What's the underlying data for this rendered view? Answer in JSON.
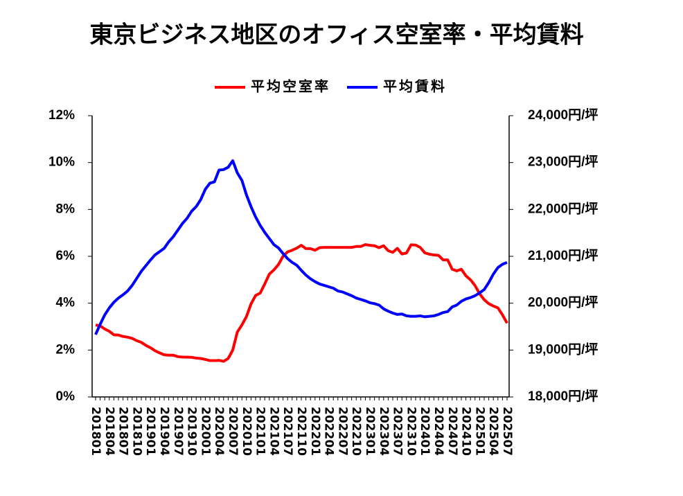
{
  "chart_data": {
    "type": "line",
    "title": "東京ビジネス地区のオフィス空室率・平均賃料",
    "categories": [
      "201801",
      null,
      null,
      "201804",
      null,
      null,
      "201807",
      null,
      null,
      "201810",
      null,
      null,
      "201901",
      null,
      null,
      "201904",
      null,
      null,
      "201907",
      null,
      null,
      "201910",
      null,
      null,
      "202001",
      null,
      null,
      "202004",
      null,
      null,
      "202007",
      null,
      null,
      "202010",
      null,
      null,
      "202101",
      null,
      null,
      "202104",
      null,
      null,
      "202107",
      null,
      null,
      "202110",
      null,
      null,
      "202201",
      null,
      null,
      "202204",
      null,
      null,
      "202207",
      null,
      null,
      "202210",
      null,
      null,
      "202301",
      null,
      null,
      "202304",
      null,
      null,
      "202307",
      null,
      null,
      "202310",
      null,
      null,
      "202401",
      null,
      null,
      "202404",
      null,
      null,
      "202407",
      null,
      null,
      "202410",
      null,
      null,
      "202501",
      null,
      null,
      "202504",
      null,
      null,
      "202507"
    ],
    "series": [
      {
        "name": "平均空室率",
        "color": "#ff0000",
        "axis": "y",
        "values": [
          3.07,
          3.03,
          2.9,
          2.8,
          2.65,
          2.64,
          2.58,
          2.55,
          2.5,
          2.4,
          2.33,
          2.2,
          2.1,
          1.97,
          1.88,
          1.8,
          1.78,
          1.78,
          1.72,
          1.7,
          1.7,
          1.69,
          1.66,
          1.64,
          1.6,
          1.55,
          1.55,
          1.56,
          1.52,
          1.64,
          2.0,
          2.77,
          3.07,
          3.43,
          3.97,
          4.33,
          4.43,
          4.82,
          5.24,
          5.42,
          5.65,
          6.0,
          6.19,
          6.26,
          6.35,
          6.47,
          6.33,
          6.33,
          6.26,
          6.37,
          6.38,
          6.38,
          6.38,
          6.38,
          6.38,
          6.38,
          6.38,
          6.42,
          6.42,
          6.5,
          6.47,
          6.45,
          6.37,
          6.45,
          6.24,
          6.17,
          6.34,
          6.1,
          6.14,
          6.49,
          6.48,
          6.38,
          6.15,
          6.09,
          6.06,
          6.04,
          5.85,
          5.85,
          5.45,
          5.38,
          5.45,
          5.17,
          5.0,
          4.75,
          4.4,
          4.15,
          3.98,
          3.88,
          3.8,
          3.5,
          3.15
        ]
      },
      {
        "name": "平均賃料",
        "color": "#0000ff",
        "axis": "y2",
        "values": [
          19330,
          19550,
          19750,
          19900,
          20020,
          20110,
          20180,
          20260,
          20380,
          20530,
          20680,
          20800,
          20920,
          21030,
          21100,
          21170,
          21310,
          21420,
          21560,
          21700,
          21810,
          21960,
          22060,
          22210,
          22430,
          22560,
          22590,
          22840,
          22850,
          22900,
          23040,
          22780,
          22620,
          22310,
          22060,
          21840,
          21660,
          21510,
          21380,
          21250,
          21180,
          21060,
          20950,
          20870,
          20810,
          20700,
          20600,
          20520,
          20460,
          20410,
          20380,
          20350,
          20320,
          20260,
          20240,
          20200,
          20160,
          20110,
          20080,
          20050,
          20010,
          19990,
          19960,
          19880,
          19830,
          19790,
          19760,
          19770,
          19730,
          19720,
          19720,
          19730,
          19710,
          19720,
          19730,
          19760,
          19800,
          19820,
          19920,
          19960,
          20040,
          20090,
          20120,
          20160,
          20220,
          20290,
          20440,
          20620,
          20760,
          20830,
          20870
        ]
      }
    ],
    "ylim": [
      0,
      12
    ],
    "yticks": [
      {
        "value": 0,
        "label": "0%"
      },
      {
        "value": 2,
        "label": "2%"
      },
      {
        "value": 4,
        "label": "4%"
      },
      {
        "value": 6,
        "label": "6%"
      },
      {
        "value": 8,
        "label": "8%"
      },
      {
        "value": 10,
        "label": "10%"
      },
      {
        "value": 12,
        "label": "12%"
      }
    ],
    "y2lim": [
      18000,
      24000
    ],
    "y2ticks": [
      {
        "value": 18000,
        "label": "18,000円/坪"
      },
      {
        "value": 19000,
        "label": "19,000円/坪"
      },
      {
        "value": 20000,
        "label": "20,000円/坪"
      },
      {
        "value": 21000,
        "label": "21,000円/坪"
      },
      {
        "value": 22000,
        "label": "22,000円/坪"
      },
      {
        "value": 23000,
        "label": "23,000円/坪"
      },
      {
        "value": 24000,
        "label": "24,000円/坪"
      }
    ],
    "grid": false,
    "legend": "top"
  }
}
